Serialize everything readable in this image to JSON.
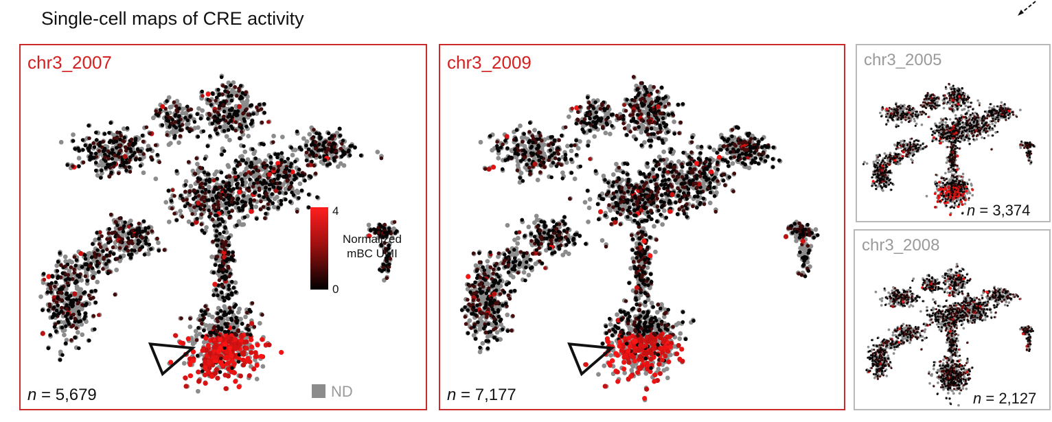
{
  "figure": {
    "title": "Single-cell maps of CRE activity"
  },
  "colors": {
    "highlight_border": "#cc2a2a",
    "grey_border": "#b8b8b8",
    "high_activity": "#ff1f1f",
    "low_activity": "#000000",
    "not_detected": "#8c8c8c"
  },
  "chart_data": [
    {
      "type": "scatter",
      "title": "chr3_2007",
      "n_label": "n = 5,679",
      "n_var": "n",
      "n_value": "5,679",
      "highlighted": true,
      "hotspot": "bottom cluster (arrowhead)",
      "color_scale": {
        "label": "Normalized mBC UMI",
        "min": 0,
        "max": 4,
        "min_label": "0",
        "max_label": "4",
        "nd_label": "ND"
      }
    },
    {
      "type": "scatter",
      "title": "chr3_2009",
      "n_label": "n = 7,177",
      "n_var": "n",
      "n_value": "7,177",
      "highlighted": true,
      "hotspot": "bottom cluster (arrowhead)"
    },
    {
      "type": "scatter",
      "title": "chr3_2005",
      "n_label": "n = 3,374",
      "n_var": "n",
      "n_value": "3,374",
      "highlighted": false,
      "hotspot": "bottom cluster"
    },
    {
      "type": "scatter",
      "title": "chr3_2008",
      "n_label": "n = 2,127",
      "n_var": "n",
      "n_value": "2,127",
      "highlighted": false,
      "hotspot": "none"
    }
  ]
}
